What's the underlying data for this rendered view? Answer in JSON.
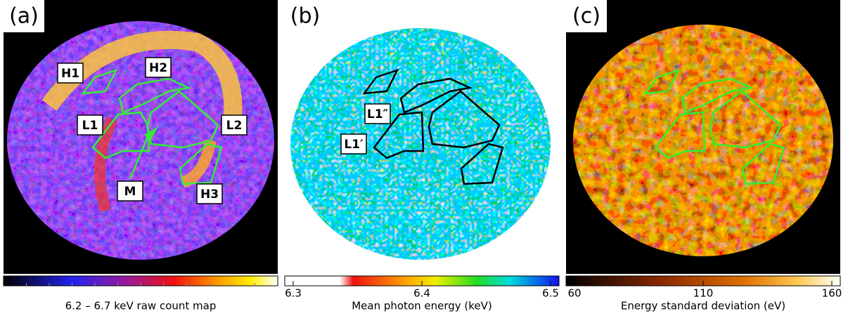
{
  "panels": [
    {
      "label": "(a)",
      "regions": [
        "H1",
        "H2",
        "L1",
        "L2",
        "M",
        "H3"
      ],
      "colorbar": {
        "label": "6.2 – 6.7 keV raw count map"
      }
    },
    {
      "label": "(b)",
      "regions": [
        "L1″",
        "L1′"
      ],
      "colorbar": {
        "label": "Mean photon energy (keV)",
        "ticks": [
          6.3,
          6.4,
          6.5
        ]
      }
    },
    {
      "label": "(c)",
      "colorbar": {
        "label": "Energy standard deviation (eV)",
        "ticks": [
          60,
          110,
          160
        ]
      }
    }
  ]
}
